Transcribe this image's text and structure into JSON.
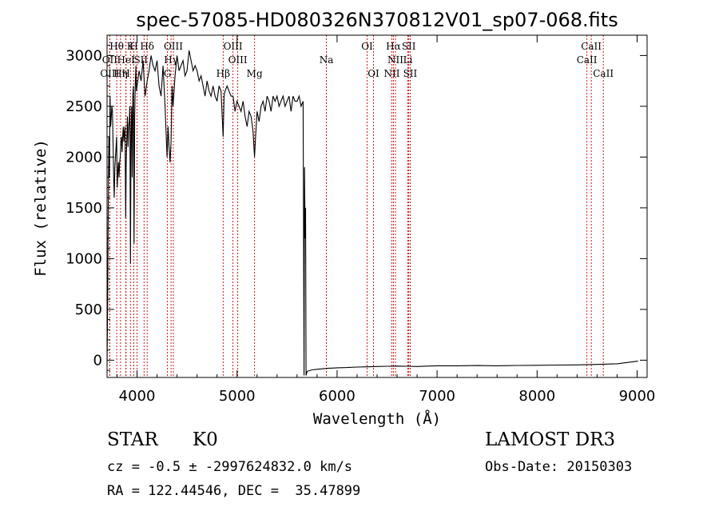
{
  "chart_data": {
    "type": "line",
    "title": "spec-57085-HD080326N370812V01_sp07-068.fits",
    "xlabel": "Wavelength (Å)",
    "ylabel": "Flux (relative)",
    "xlim": [
      3700,
      9100
    ],
    "ylim": [
      -170,
      3200
    ],
    "xticks": [
      4000,
      5000,
      6000,
      7000,
      8000,
      9000
    ],
    "yticks": [
      0,
      500,
      1000,
      1500,
      2000,
      2500,
      3000
    ],
    "grid": false,
    "line_color": "#000000",
    "marker_color": "#cc0000",
    "spectrum": {
      "x": [
        3700,
        3706,
        3712,
        3718,
        3724,
        3730,
        3736,
        3742,
        3748,
        3754,
        3760,
        3766,
        3772,
        3778,
        3784,
        3790,
        3796,
        3802,
        3808,
        3814,
        3820,
        3826,
        3832,
        3838,
        3844,
        3850,
        3856,
        3862,
        3868,
        3874,
        3880,
        3886,
        3892,
        3898,
        3904,
        3910,
        3916,
        3922,
        3928,
        3934,
        3940,
        3946,
        3952,
        3958,
        3964,
        3970,
        3976,
        3982,
        3988,
        3994,
        4000,
        4020,
        4040,
        4060,
        4080,
        4101,
        4120,
        4140,
        4160,
        4180,
        4200,
        4220,
        4240,
        4260,
        4280,
        4300,
        4310,
        4320,
        4330,
        4340,
        4350,
        4360,
        4380,
        4400,
        4420,
        4440,
        4460,
        4480,
        4500,
        4520,
        4540,
        4560,
        4580,
        4600,
        4620,
        4640,
        4660,
        4680,
        4700,
        4720,
        4740,
        4760,
        4780,
        4800,
        4820,
        4840,
        4861,
        4870,
        4880,
        4900,
        4920,
        4940,
        4960,
        4980,
        5000,
        5020,
        5040,
        5060,
        5080,
        5100,
        5120,
        5140,
        5160,
        5175,
        5185,
        5200,
        5220,
        5240,
        5260,
        5280,
        5300,
        5320,
        5340,
        5360,
        5380,
        5400,
        5420,
        5440,
        5460,
        5480,
        5500,
        5520,
        5540,
        5560,
        5580,
        5600,
        5620,
        5640,
        5660,
        5670,
        5675,
        5680,
        5685,
        5690,
        5700,
        5750,
        5800,
        5850,
        5900,
        5950,
        6000,
        6100,
        6200,
        6300,
        6400,
        6500,
        6600,
        6700,
        6800,
        6900,
        7000,
        7200,
        7400,
        7600,
        7800,
        8000,
        8200,
        8400,
        8600,
        8800,
        9000,
        9010
      ],
      "y": [
        -60,
        600,
        1500,
        2200,
        1800,
        2600,
        2300,
        2400,
        2500,
        2450,
        2150,
        1800,
        1600,
        1900,
        2000,
        2100,
        2200,
        1700,
        1850,
        1950,
        1800,
        1950,
        2000,
        2150,
        2200,
        2050,
        2200,
        2300,
        2150,
        2250,
        2300,
        1400,
        1950,
        2200,
        2400,
        2100,
        2300,
        2350,
        2500,
        950,
        2200,
        2500,
        1800,
        2600,
        2700,
        1150,
        2400,
        2700,
        2900,
        2650,
        2700,
        2850,
        2750,
        2950,
        2600,
        2750,
        2850,
        3000,
        2900,
        2850,
        2950,
        2700,
        2600,
        2900,
        2500,
        2000,
        2300,
        2100,
        1950,
        2150,
        2700,
        2500,
        2800,
        3000,
        2850,
        2900,
        2950,
        2800,
        2850,
        3050,
        2950,
        2850,
        2900,
        2850,
        2750,
        2800,
        2700,
        2600,
        2750,
        2650,
        2600,
        2700,
        2600,
        2550,
        2700,
        2650,
        2200,
        2600,
        2650,
        2700,
        2650,
        2600,
        2600,
        2450,
        2550,
        2500,
        2450,
        2550,
        2400,
        2300,
        2450,
        2400,
        2250,
        2000,
        2200,
        2450,
        2350,
        2500,
        2550,
        2450,
        2600,
        2550,
        2450,
        2600,
        2550,
        2600,
        2500,
        2550,
        2600,
        2500,
        2550,
        2600,
        2450,
        2600,
        2550,
        2550,
        2600,
        2500,
        2550,
        -150,
        1900,
        1200,
        1500,
        -150,
        -110,
        -95,
        -90,
        -85,
        -80,
        -78,
        -75,
        -72,
        -68,
        -65,
        -62,
        -60,
        -58,
        -60,
        -62,
        -58,
        -55,
        -55,
        -53,
        -55,
        -52,
        -50,
        -48,
        -46,
        -42,
        -35,
        -10,
        -10
      ]
    },
    "lines": [
      {
        "label": "Hθ",
        "x": 3797,
        "row": 0
      },
      {
        "label": "K",
        "x": 3934,
        "row": 0
      },
      {
        "label": "H",
        "x": 3968,
        "row": 0
      },
      {
        "label": "Hδ",
        "x": 4101,
        "row": 0
      },
      {
        "label": "OIII",
        "x": 4363,
        "row": 0
      },
      {
        "label": "OIII",
        "x": 4959,
        "row": 0
      },
      {
        "label": "OI",
        "x": 6300,
        "row": 0
      },
      {
        "label": "Hα",
        "x": 6563,
        "row": 0
      },
      {
        "label": "SII",
        "x": 6717,
        "row": 0
      },
      {
        "label": "CaII",
        "x": 8542,
        "row": 0
      },
      {
        "label": "OII",
        "x": 3727,
        "row": 1
      },
      {
        "label": "HeI",
        "x": 3889,
        "row": 1
      },
      {
        "label": "S",
        "x": 4000,
        "row": 1
      },
      {
        "label": "II",
        "x": 4070,
        "row": 1
      },
      {
        "label": "Hγ",
        "x": 4340,
        "row": 1
      },
      {
        "label": "OIII",
        "x": 5007,
        "row": 1
      },
      {
        "label": "Na",
        "x": 5893,
        "row": 1
      },
      {
        "label": "NII",
        "x": 6584,
        "row": 1
      },
      {
        "label": "Li",
        "x": 6708,
        "row": 1
      },
      {
        "label": "CaII",
        "x": 8498,
        "row": 1
      },
      {
        "label": "OIII",
        "x": 3727,
        "row": 2
      },
      {
        "label": "Hη",
        "x": 3835,
        "row": 2
      },
      {
        "label": "H",
        "x": 3889,
        "row": 2
      },
      {
        "label": "G",
        "x": 4304,
        "row": 2
      },
      {
        "label": "Hβ",
        "x": 4861,
        "row": 2
      },
      {
        "label": "Mg",
        "x": 5175,
        "row": 2
      },
      {
        "label": "OI",
        "x": 6364,
        "row": 2
      },
      {
        "label": "NII",
        "x": 6548,
        "row": 2
      },
      {
        "label": "SII",
        "x": 6731,
        "row": 2
      },
      {
        "label": "CaII",
        "x": 8662,
        "row": 2
      }
    ]
  },
  "info": {
    "object_class": "STAR",
    "subclass": "K0",
    "survey": "LAMOST DR3",
    "redshift_line": "cz = -0.5 ± -2997624832.0 km/s",
    "obs_date": "Obs-Date: 20150303",
    "coords": "RA = 122.44546, DEC =  35.47899"
  }
}
